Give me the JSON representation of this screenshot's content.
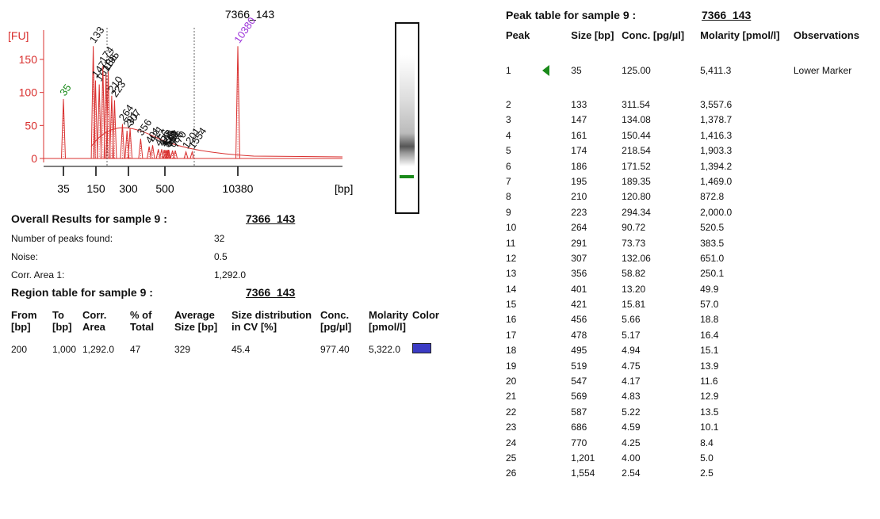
{
  "chart": {
    "title": "7366_143",
    "y_label": "[FU]",
    "x_label": "[bp]",
    "ylim": [
      -10,
      190
    ],
    "yticks": [
      0,
      50,
      100,
      150
    ],
    "xticks": [
      35,
      150,
      300,
      500,
      10380
    ],
    "trace_color": "#d9302f",
    "lower_marker_color": "#1a8a1a",
    "upper_marker_color": "#9b30d9",
    "peaks": [
      {
        "size": 35,
        "height": 90
      },
      {
        "size": 133,
        "height": 170
      },
      {
        "size": 147,
        "height": 118
      },
      {
        "size": 161,
        "height": 112
      },
      {
        "size": 174,
        "height": 140
      },
      {
        "size": 186,
        "height": 128
      },
      {
        "size": 195,
        "height": 132
      },
      {
        "size": 210,
        "height": 95
      },
      {
        "size": 223,
        "height": 88
      },
      {
        "size": 264,
        "height": 52
      },
      {
        "size": 291,
        "height": 42
      },
      {
        "size": 307,
        "height": 45
      },
      {
        "size": 356,
        "height": 30
      },
      {
        "size": 401,
        "height": 18
      },
      {
        "size": 421,
        "height": 20
      },
      {
        "size": 456,
        "height": 14
      },
      {
        "size": 478,
        "height": 14
      },
      {
        "size": 495,
        "height": 13
      },
      {
        "size": 519,
        "height": 13
      },
      {
        "size": 547,
        "height": 12
      },
      {
        "size": 569,
        "height": 13
      },
      {
        "size": 587,
        "height": 13
      },
      {
        "size": 686,
        "height": 12
      },
      {
        "size": 770,
        "height": 12
      },
      {
        "size": 1201,
        "height": 10
      },
      {
        "size": 1554,
        "height": 10
      },
      {
        "size": 10380,
        "height": 170
      }
    ]
  },
  "overall": {
    "title": "Overall Results for sample 9 :",
    "sample": "7366_143",
    "rows": [
      [
        "Number of peaks found:",
        "32"
      ],
      [
        "Noise:",
        "0.5"
      ],
      [
        "Corr. Area 1:",
        "1,292.0"
      ]
    ]
  },
  "region_table": {
    "title": "Region table for sample 9 :",
    "sample": "7366_143",
    "headers": [
      "From [bp]",
      "To [bp]",
      "Corr. Area",
      "% of Total",
      "Average Size [bp]",
      "Size distribution in CV [%]",
      "Conc. [pg/µl]",
      "Molarity [pmol/l]",
      "Color"
    ],
    "rows": [
      [
        "200",
        "1,000",
        "1,292.0",
        "47",
        "329",
        "45.4",
        "977.40",
        "5,322.0"
      ]
    ],
    "row_color": "#3b3bc4"
  },
  "peak_table": {
    "title": "Peak table for sample 9 :",
    "sample": "7366_143",
    "headers": [
      "Peak",
      "Size [bp]",
      "Conc. [pg/µl]",
      "Molarity [pmol/l]",
      "Observations"
    ],
    "rows": [
      [
        "1",
        "35",
        "125.00",
        "5,411.3",
        "Lower Marker"
      ],
      [
        "2",
        "133",
        "311.54",
        "3,557.6"
      ],
      [
        "3",
        "147",
        "134.08",
        "1,378.7"
      ],
      [
        "4",
        "161",
        "150.44",
        "1,416.3"
      ],
      [
        "5",
        "174",
        "218.54",
        "1,903.3"
      ],
      [
        "6",
        "186",
        "171.52",
        "1,394.2"
      ],
      [
        "7",
        "195",
        "189.35",
        "1,469.0"
      ],
      [
        "8",
        "210",
        "120.80",
        "872.8"
      ],
      [
        "9",
        "223",
        "294.34",
        "2,000.0"
      ],
      [
        "10",
        "264",
        "90.72",
        "520.5"
      ],
      [
        "11",
        "291",
        "73.73",
        "383.5"
      ],
      [
        "12",
        "307",
        "132.06",
        "651.0"
      ],
      [
        "13",
        "356",
        "58.82",
        "250.1"
      ],
      [
        "14",
        "401",
        "13.20",
        "49.9"
      ],
      [
        "15",
        "421",
        "15.81",
        "57.0"
      ],
      [
        "16",
        "456",
        "5.66",
        "18.8"
      ],
      [
        "17",
        "478",
        "5.17",
        "16.4"
      ],
      [
        "18",
        "495",
        "4.94",
        "15.1"
      ],
      [
        "19",
        "519",
        "4.75",
        "13.9"
      ],
      [
        "20",
        "547",
        "4.17",
        "11.6"
      ],
      [
        "21",
        "569",
        "4.83",
        "12.9"
      ],
      [
        "22",
        "587",
        "5.22",
        "13.5"
      ],
      [
        "23",
        "686",
        "4.59",
        "10.1"
      ],
      [
        "24",
        "770",
        "4.25",
        "8.4"
      ],
      [
        "25",
        "1,201",
        "4.00",
        "5.0"
      ],
      [
        "26",
        "1,554",
        "2.54",
        "2.5"
      ]
    ]
  }
}
